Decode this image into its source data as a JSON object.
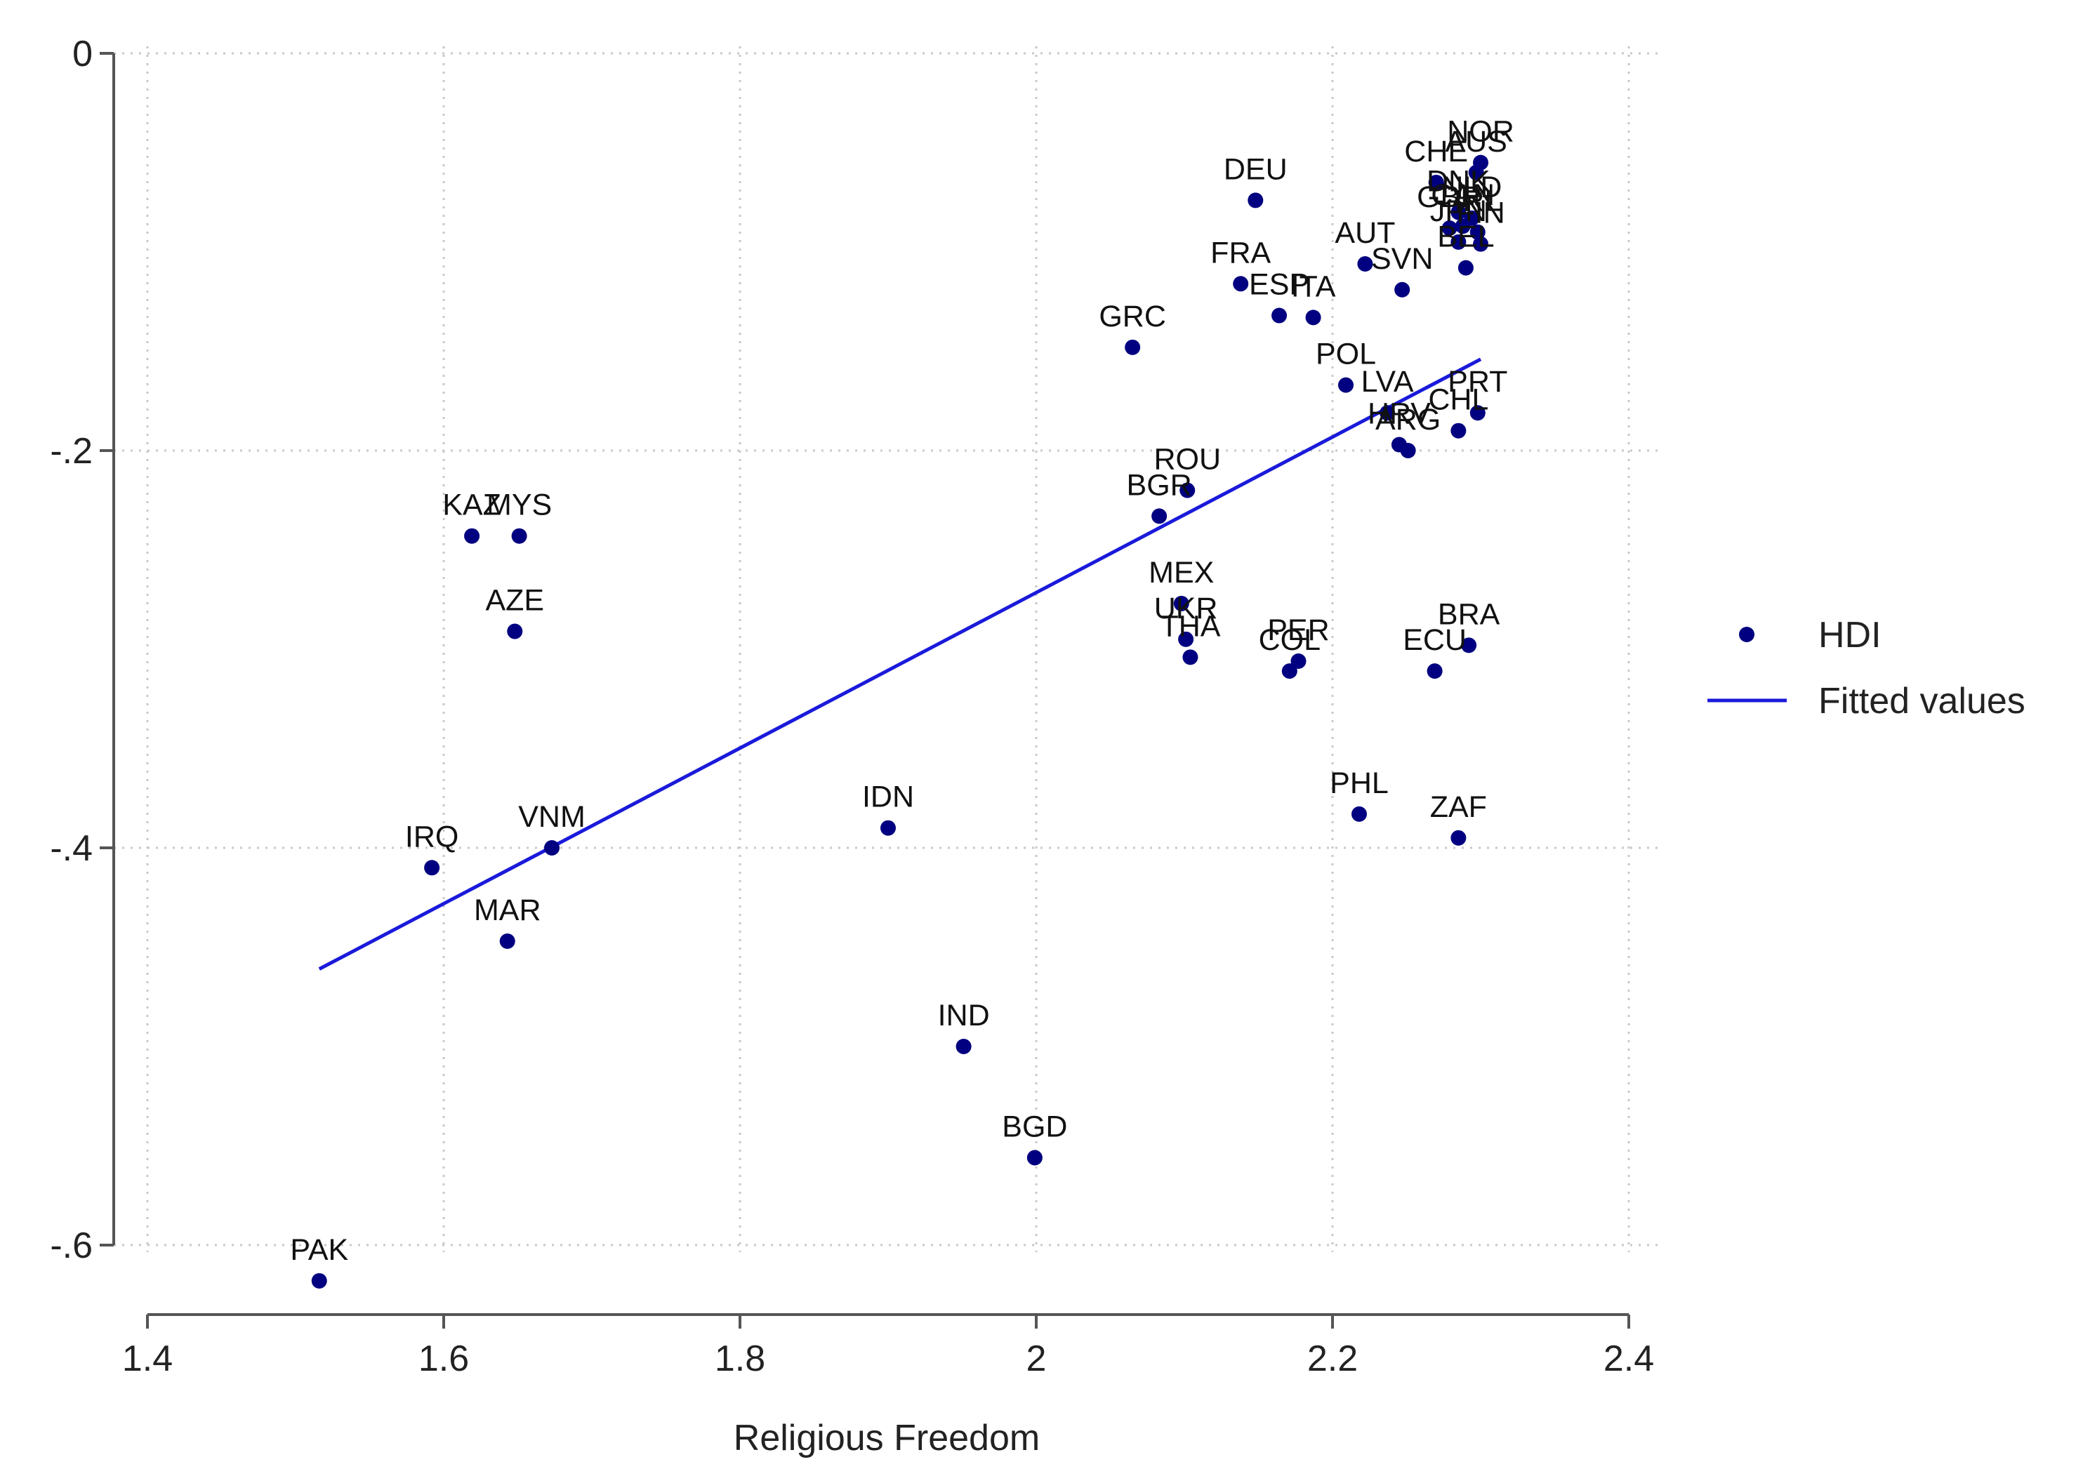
{
  "chart_data": {
    "type": "scatter",
    "title": "",
    "xlabel": "Religious Freedom",
    "ylabel": "",
    "xlim": [
      1.4,
      2.4
    ],
    "ylim": [
      -0.6,
      0
    ],
    "x_ticks": [
      1.4,
      1.6,
      1.8,
      2.0,
      2.2,
      2.4
    ],
    "x_tick_labels": [
      "1.4",
      "1.6",
      "1.8",
      "2",
      "2.2",
      "2.4"
    ],
    "y_ticks": [
      0,
      -0.2,
      -0.4,
      -0.6
    ],
    "y_tick_labels": [
      "0",
      "-.2",
      "-.4",
      "-.6"
    ],
    "grid": true,
    "legend": {
      "placement": "right",
      "entries": [
        {
          "label": "HDI",
          "kind": "marker"
        },
        {
          "label": "Fitted values",
          "kind": "line"
        }
      ]
    },
    "colors": {
      "points": "#000080",
      "fit": "#1a1adb",
      "grid": "#c8c8c8",
      "axis": "#555555"
    },
    "series": [
      {
        "name": "HDI",
        "type": "scatter",
        "points": [
          {
            "label": "NOR",
            "x": 2.3,
            "y": -0.055
          },
          {
            "label": "AUS",
            "x": 2.297,
            "y": -0.06
          },
          {
            "label": "CHE",
            "x": 2.27,
            "y": -0.065
          },
          {
            "label": "DEU",
            "x": 2.148,
            "y": -0.074
          },
          {
            "label": "DNK",
            "x": 2.285,
            "y": -0.08
          },
          {
            "label": "NLD",
            "x": 2.294,
            "y": -0.083
          },
          {
            "label": "GBR",
            "x": 2.279,
            "y": -0.088
          },
          {
            "label": "CAN",
            "x": 2.288,
            "y": -0.087
          },
          {
            "label": "IRL",
            "x": 2.298,
            "y": -0.09
          },
          {
            "label": "JPN",
            "x": 2.285,
            "y": -0.095
          },
          {
            "label": "FIN",
            "x": 2.3,
            "y": -0.096
          },
          {
            "label": "AUT",
            "x": 2.222,
            "y": -0.106
          },
          {
            "label": "SVN",
            "x": 2.247,
            "y": -0.119
          },
          {
            "label": "BEL",
            "x": 2.29,
            "y": -0.108
          },
          {
            "label": "FRA",
            "x": 2.138,
            "y": -0.116
          },
          {
            "label": "ESP",
            "x": 2.164,
            "y": -0.132
          },
          {
            "label": "ITA",
            "x": 2.187,
            "y": -0.133
          },
          {
            "label": "GRC",
            "x": 2.065,
            "y": -0.148
          },
          {
            "label": "POL",
            "x": 2.209,
            "y": -0.167
          },
          {
            "label": "LVA",
            "x": 2.237,
            "y": -0.181
          },
          {
            "label": "PRT",
            "x": 2.298,
            "y": -0.181
          },
          {
            "label": "CHL",
            "x": 2.285,
            "y": -0.19
          },
          {
            "label": "HRV",
            "x": 2.245,
            "y": -0.197
          },
          {
            "label": "ARG",
            "x": 2.251,
            "y": -0.2
          },
          {
            "label": "ROU",
            "x": 2.102,
            "y": -0.22
          },
          {
            "label": "BGR",
            "x": 2.083,
            "y": -0.233
          },
          {
            "label": "KAZ",
            "x": 1.619,
            "y": -0.243
          },
          {
            "label": "MYS",
            "x": 1.651,
            "y": -0.243
          },
          {
            "label": "AZE",
            "x": 1.648,
            "y": -0.291
          },
          {
            "label": "MEX",
            "x": 2.098,
            "y": -0.277
          },
          {
            "label": "UKR",
            "x": 2.101,
            "y": -0.295
          },
          {
            "label": "THA",
            "x": 2.104,
            "y": -0.304
          },
          {
            "label": "PER",
            "x": 2.177,
            "y": -0.306
          },
          {
            "label": "COL",
            "x": 2.171,
            "y": -0.311
          },
          {
            "label": "BRA",
            "x": 2.292,
            "y": -0.298
          },
          {
            "label": "ECU",
            "x": 2.269,
            "y": -0.311
          },
          {
            "label": "IDN",
            "x": 1.9,
            "y": -0.39
          },
          {
            "label": "VNM",
            "x": 1.673,
            "y": -0.4
          },
          {
            "label": "IRQ",
            "x": 1.592,
            "y": -0.41
          },
          {
            "label": "MAR",
            "x": 1.643,
            "y": -0.447
          },
          {
            "label": "PHL",
            "x": 2.218,
            "y": -0.383
          },
          {
            "label": "ZAF",
            "x": 2.285,
            "y": -0.395
          },
          {
            "label": "IND",
            "x": 1.951,
            "y": -0.5
          },
          {
            "label": "BGD",
            "x": 1.999,
            "y": -0.556
          },
          {
            "label": "PAK",
            "x": 1.516,
            "y": -0.618
          }
        ]
      },
      {
        "name": "Fitted values",
        "type": "line",
        "points": [
          {
            "x": 1.516,
            "y": -0.461
          },
          {
            "x": 2.3,
            "y": -0.154
          }
        ]
      }
    ]
  }
}
